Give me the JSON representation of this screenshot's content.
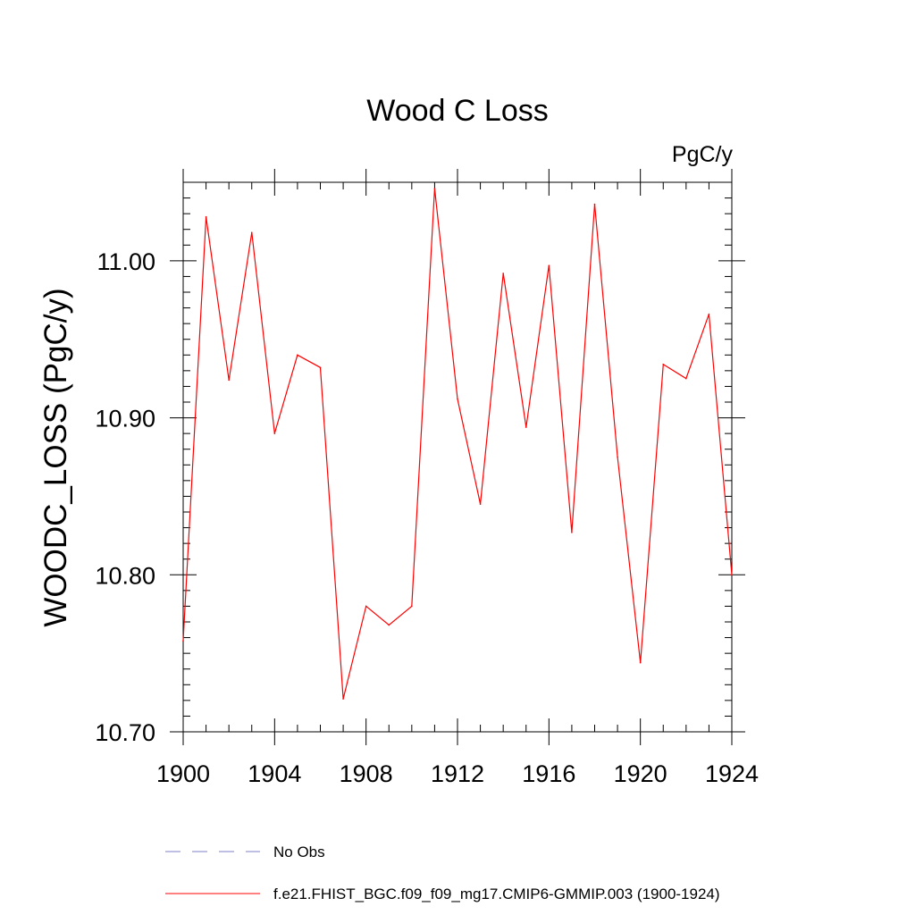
{
  "chart_data": {
    "type": "line",
    "title": "Wood C Loss",
    "units_label": "PgC/y",
    "ylabel": "WOODC_LOSS  (PgC/y)",
    "xlabel": "",
    "xlim": [
      1900,
      1924
    ],
    "ylim": [
      10.7,
      11.05
    ],
    "x_ticks": [
      "1900",
      "1904",
      "1908",
      "1912",
      "1916",
      "1920",
      "1924"
    ],
    "y_ticks": [
      "10.70",
      "10.80",
      "10.90",
      "11.00"
    ],
    "grid": false,
    "legend_position": "bottom",
    "series": [
      {
        "name": "f.e21.FHIST_BGC.f09_f09_mg17.CMIP6-GMMIP.003 (1900-1924)",
        "color": "#ff0000",
        "style": "solid",
        "x": [
          1900,
          1901,
          1902,
          1903,
          1904,
          1905,
          1906,
          1907,
          1908,
          1909,
          1910,
          1911,
          1912,
          1913,
          1914,
          1915,
          1916,
          1917,
          1918,
          1919,
          1920,
          1921,
          1922,
          1923,
          1924
        ],
        "values": [
          10.758,
          11.028,
          10.924,
          11.018,
          10.89,
          10.94,
          10.932,
          10.721,
          10.78,
          10.768,
          10.78,
          11.046,
          10.912,
          10.845,
          10.992,
          10.894,
          10.997,
          10.827,
          11.036,
          10.875,
          10.744,
          10.934,
          10.925,
          10.966,
          10.8
        ]
      }
    ],
    "legend": [
      {
        "label": "No Obs",
        "color": "#7f7fc8",
        "style": "dashed"
      },
      {
        "label": "f.e21.FHIST_BGC.f09_f09_mg17.CMIP6-GMMIP.003 (1900-1924)",
        "color": "#ff0000",
        "style": "solid"
      }
    ]
  }
}
